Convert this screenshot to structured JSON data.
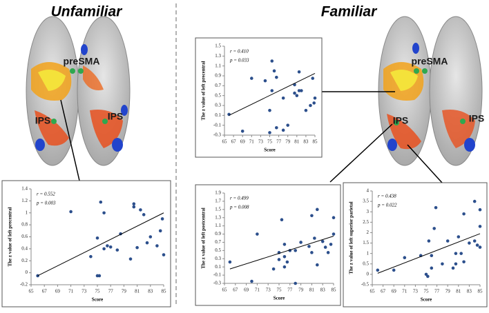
{
  "headings": [
    "Unfamiliar",
    "Familiar"
  ],
  "brains": [
    {
      "labels": [
        "preSMA",
        "IPS",
        "IPS"
      ]
    },
    {
      "labels": [
        "preSMA",
        "IPS",
        "IPS"
      ]
    }
  ],
  "chart_data": [
    {
      "type": "scatter",
      "y_label": "The z value of left precentral",
      "x_label": "Score",
      "annotations": [
        "r = 0.552",
        "p = 0.003"
      ],
      "color": "#2c4f8c",
      "x": [
        66,
        71,
        74,
        75,
        75.3,
        75,
        75.5,
        76,
        76,
        76.5,
        77,
        78,
        78.5,
        80,
        80.5,
        80.5,
        81,
        81.5,
        82,
        82.5,
        83,
        84,
        84.5,
        84.8,
        85
      ],
      "values": [
        -0.05,
        1.02,
        0.27,
        -0.05,
        -0.05,
        0.58,
        1.18,
        1.0,
        0.4,
        0.45,
        0.43,
        0.38,
        0.65,
        0.23,
        1.15,
        1.1,
        0.42,
        1.05,
        0.97,
        0.5,
        0.6,
        0.45,
        0.7,
        0.9,
        0.3
      ],
      "fit": {
        "x": [
          66,
          85
        ],
        "values": [
          -0.05,
          1.0
        ]
      },
      "xlim": [
        65,
        85
      ],
      "xticks": [
        65,
        67,
        69,
        71,
        73,
        75,
        77,
        79,
        81,
        83,
        85
      ],
      "ylim": [
        -0.2,
        1.4
      ],
      "yticks": [
        -0.2,
        0,
        0.2,
        0.4,
        0.6,
        0.8,
        1,
        1.2,
        1.4
      ]
    },
    {
      "type": "scatter",
      "y_label": "The z value of left precentral",
      "x_label": "Score",
      "annotations": [
        "r = 0.410",
        "p = 0.033"
      ],
      "color": "#2c4f8c",
      "x": [
        66,
        69,
        71,
        74,
        75,
        75,
        75.5,
        75.5,
        76,
        76.5,
        76.5,
        78,
        78,
        79,
        80.5,
        80.5,
        81,
        81.5,
        81.5,
        82,
        83,
        84,
        84.5,
        84.8,
        85
      ],
      "values": [
        0.12,
        -0.22,
        0.85,
        0.8,
        0.2,
        -0.25,
        0.6,
        1.2,
        1.0,
        0.87,
        -0.15,
        -0.2,
        0.45,
        -0.1,
        0.72,
        0.55,
        0.5,
        0.6,
        0.98,
        0.6,
        0.2,
        0.3,
        0.85,
        0.35,
        0.45
      ],
      "fit": {
        "x": [
          66,
          85
        ],
        "values": [
          0.1,
          0.95
        ]
      },
      "xlim": [
        65,
        85
      ],
      "xticks": [
        65,
        67,
        69,
        71,
        73,
        75,
        77,
        79,
        81,
        83,
        85
      ],
      "ylim": [
        -0.3,
        1.5
      ],
      "yticks": [
        -0.3,
        -0.1,
        0.1,
        0.3,
        0.5,
        0.7,
        0.9,
        1.1,
        1.3,
        1.5
      ]
    },
    {
      "type": "scatter",
      "y_label": "The z value of left postcentral",
      "x_label": "Score",
      "annotations": [
        "r = 0.499",
        "p = 0.008"
      ],
      "color": "#2c4f8c",
      "x": [
        66,
        70,
        71,
        74,
        75,
        75,
        75.5,
        76,
        76,
        76,
        76.5,
        77,
        78,
        78,
        79,
        80.5,
        81,
        81,
        81.5,
        82,
        82,
        83,
        83.5,
        84,
        84.5,
        85,
        85
      ],
      "values": [
        0.22,
        -0.25,
        0.9,
        0.05,
        0.45,
        0.28,
        1.25,
        0.65,
        0.35,
        0.1,
        0.22,
        0.5,
        -0.3,
        0.5,
        0.7,
        0.6,
        0.45,
        1.35,
        0.8,
        0.15,
        1.5,
        0.72,
        0.58,
        0.45,
        0.65,
        0.9,
        1.3
      ],
      "fit": {
        "x": [
          66,
          85
        ],
        "values": [
          0.05,
          0.85
        ]
      },
      "xlim": [
        65,
        85
      ],
      "xticks": [
        65,
        67,
        69,
        71,
        73,
        75,
        77,
        79,
        81,
        83,
        85
      ],
      "ylim": [
        -0.3,
        1.9
      ],
      "yticks": [
        -0.3,
        -0.1,
        0.1,
        0.3,
        0.5,
        0.7,
        0.9,
        1.1,
        1.3,
        1.5,
        1.7,
        1.9
      ]
    },
    {
      "type": "scatter",
      "y_label": "The z value of left superior parietal",
      "x_label": "Score",
      "annotations": [
        "r = 0.438",
        "p = 0.022"
      ],
      "color": "#2c4f8c",
      "x": [
        66,
        69,
        71,
        74,
        75,
        75.3,
        75.5,
        76,
        76,
        76.5,
        76.8,
        78,
        79,
        80,
        80.5,
        80.5,
        81,
        81.5,
        82,
        82,
        83,
        84,
        84,
        84.5,
        85,
        85,
        85
      ],
      "values": [
        0.2,
        0.2,
        0.8,
        0.9,
        0,
        -0.1,
        1.6,
        0.3,
        0.9,
        2.2,
        3.2,
        0.5,
        1.6,
        0.3,
        1,
        0.5,
        1.8,
        1,
        2.9,
        0.6,
        1.5,
        1.6,
        3.5,
        1.4,
        1.3,
        3.1,
        2.3
      ],
      "fit": {
        "x": [
          66,
          85
        ],
        "values": [
          0.05,
          1.95
        ]
      },
      "xlim": [
        65,
        85
      ],
      "xticks": [
        65,
        67,
        69,
        71,
        73,
        75,
        77,
        79,
        81,
        83,
        85
      ],
      "ylim": [
        -0.5,
        4
      ],
      "yticks": [
        -0.5,
        0,
        0.5,
        1,
        1.5,
        2,
        2.5,
        3,
        3.5,
        4
      ]
    }
  ]
}
